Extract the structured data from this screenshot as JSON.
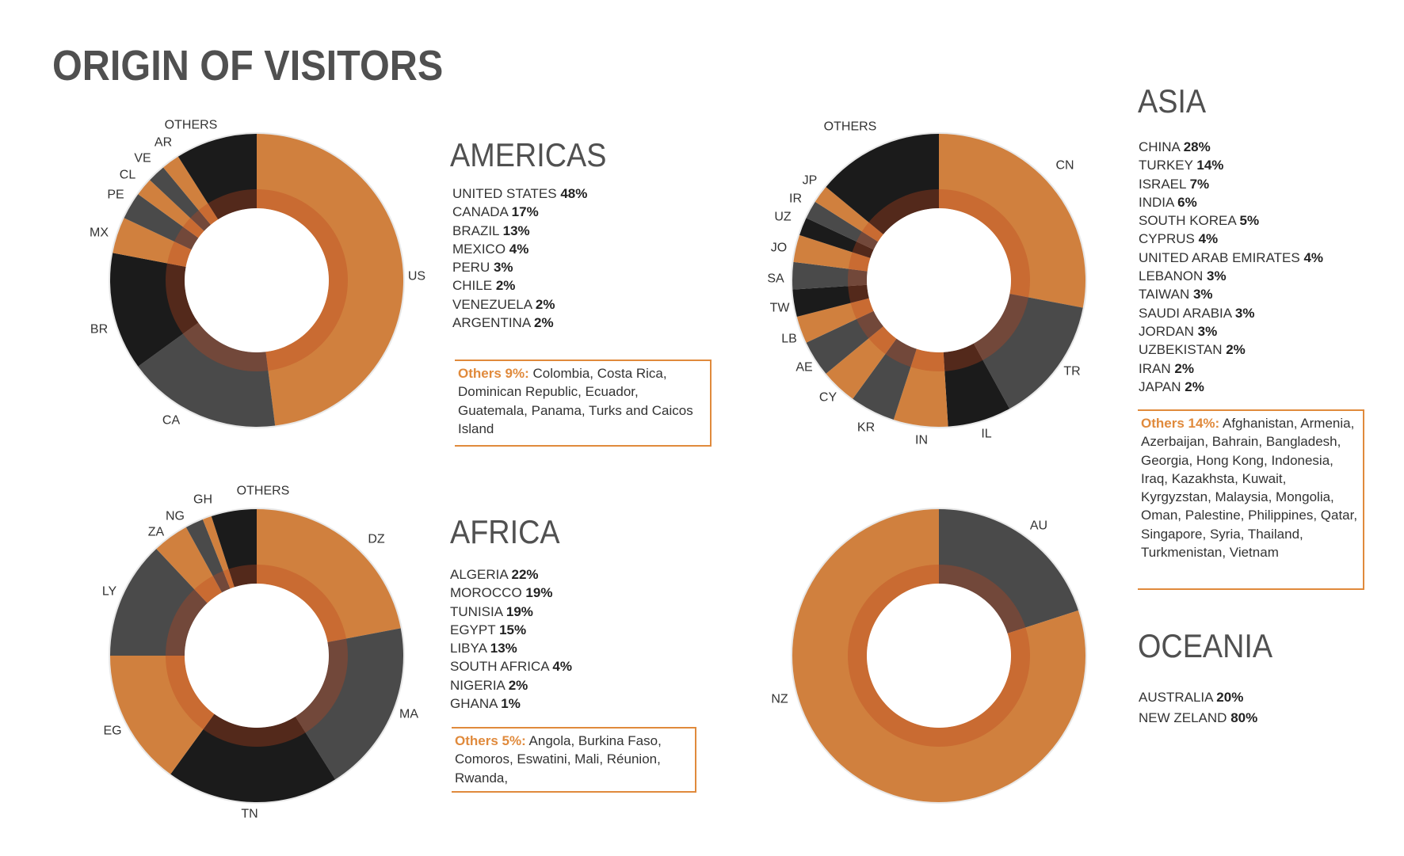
{
  "title": "ORIGIN OF VISITORS",
  "colors": {
    "orange": "#d0803e",
    "gray": "#4a4a4a",
    "black": "#1b1b1b",
    "accent": "#e08a3c"
  },
  "sections": {
    "americas": {
      "heading": "AMERICAS",
      "items": [
        {
          "name": "UNITED STATES",
          "pct": "48%"
        },
        {
          "name": "CANADA",
          "pct": "17%"
        },
        {
          "name": "BRAZIL",
          "pct": "13%"
        },
        {
          "name": "MEXICO",
          "pct": "4%"
        },
        {
          "name": "PERU",
          "pct": "3%"
        },
        {
          "name": "CHILE",
          "pct": "2%"
        },
        {
          "name": "VENEZUELA",
          "pct": "2%"
        },
        {
          "name": "ARGENTINA",
          "pct": "2%"
        }
      ],
      "others_label": "Others 9%:",
      "others_text": "Colombia, Costa Rica, Dominican Republic, Ecuador, Guatemala, Panama, Turks and Caicos Island"
    },
    "asia": {
      "heading": "ASIA",
      "items": [
        {
          "name": "CHINA",
          "pct": "28%"
        },
        {
          "name": "TURKEY",
          "pct": "14%"
        },
        {
          "name": "ISRAEL",
          "pct": "7%"
        },
        {
          "name": "INDIA",
          "pct": "6%"
        },
        {
          "name": "SOUTH KOREA",
          "pct": "5%"
        },
        {
          "name": "CYPRUS",
          "pct": "4%"
        },
        {
          "name": "UNITED ARAB EMIRATES",
          "pct": "4%"
        },
        {
          "name": "LEBANON",
          "pct": "3%"
        },
        {
          "name": "TAIWAN",
          "pct": "3%"
        },
        {
          "name": "SAUDI ARABIA",
          "pct": "3%"
        },
        {
          "name": "JORDAN",
          "pct": "3%"
        },
        {
          "name": "UZBEKISTAN",
          "pct": "2%"
        },
        {
          "name": "IRAN",
          "pct": "2%"
        },
        {
          "name": "JAPAN",
          "pct": "2%"
        }
      ],
      "others_label": "Others 14%:",
      "others_text": "Afghanistan, Armenia, Azerbaijan, Bahrain, Bangladesh, Georgia, Hong Kong, Indonesia, Iraq, Kazakhsta, Kuwait, Kyrgyzstan, Malaysia, Mongolia, Oman, Palestine, Philippines, Qatar, Singapore, Syria, Thailand, Turkmenistan, Vietnam"
    },
    "africa": {
      "heading": "AFRICA",
      "items": [
        {
          "name": "ALGERIA",
          "pct": "22%"
        },
        {
          "name": "MOROCCO",
          "pct": "19%"
        },
        {
          "name": "TUNISIA",
          "pct": "19%"
        },
        {
          "name": "EGYPT",
          "pct": "15%"
        },
        {
          "name": "LIBYA",
          "pct": "13%"
        },
        {
          "name": "SOUTH AFRICA",
          "pct": "4%"
        },
        {
          "name": "NIGERIA",
          "pct": "2%"
        },
        {
          "name": "GHANA",
          "pct": "1%"
        }
      ],
      "others_label": "Others 5%:",
      "others_text": "Angola, Burkina Faso, Comoros, Eswatini, Mali, Réunion, Rwanda,"
    },
    "oceania": {
      "heading": "OCEANIA",
      "items": [
        {
          "name": "AUSTRALIA",
          "pct": "20%"
        },
        {
          "name": "NEW ZELAND",
          "pct": "80%"
        }
      ]
    }
  },
  "chart_data": [
    {
      "id": "americas",
      "type": "pie",
      "title": "AMERICAS",
      "categories": [
        "US",
        "CA",
        "BR",
        "MX",
        "PE",
        "CL",
        "VE",
        "AR",
        "OTHERS"
      ],
      "values": [
        48,
        17,
        13,
        4,
        3,
        2,
        2,
        2,
        9
      ],
      "colors": [
        "orange",
        "gray",
        "black",
        "orange",
        "gray",
        "orange",
        "gray",
        "orange",
        "black"
      ]
    },
    {
      "id": "asia",
      "type": "pie",
      "title": "ASIA",
      "categories": [
        "CN",
        "TR",
        "IL",
        "IN",
        "KR",
        "CY",
        "AE",
        "LB",
        "TW",
        "SA",
        "JO",
        "UZ",
        "IR",
        "JP",
        "OTHERS"
      ],
      "values": [
        28,
        14,
        7,
        6,
        5,
        4,
        4,
        3,
        3,
        3,
        3,
        2,
        2,
        2,
        14
      ],
      "colors": [
        "orange",
        "gray",
        "black",
        "orange",
        "gray",
        "orange",
        "gray",
        "orange",
        "black",
        "gray",
        "orange",
        "black",
        "gray",
        "orange",
        "black"
      ]
    },
    {
      "id": "africa",
      "type": "pie",
      "title": "AFRICA",
      "categories": [
        "DZ",
        "MA",
        "TN",
        "EG",
        "LY",
        "ZA",
        "NG",
        "GH",
        "OTHERS"
      ],
      "values": [
        22,
        19,
        19,
        15,
        13,
        4,
        2,
        1,
        5
      ],
      "colors": [
        "orange",
        "gray",
        "black",
        "orange",
        "gray",
        "orange",
        "gray",
        "orange",
        "black"
      ]
    },
    {
      "id": "oceania",
      "type": "pie",
      "title": "OCEANIA",
      "categories": [
        "AU",
        "NZ"
      ],
      "values": [
        20,
        80
      ],
      "colors": [
        "gray",
        "orange"
      ]
    }
  ]
}
